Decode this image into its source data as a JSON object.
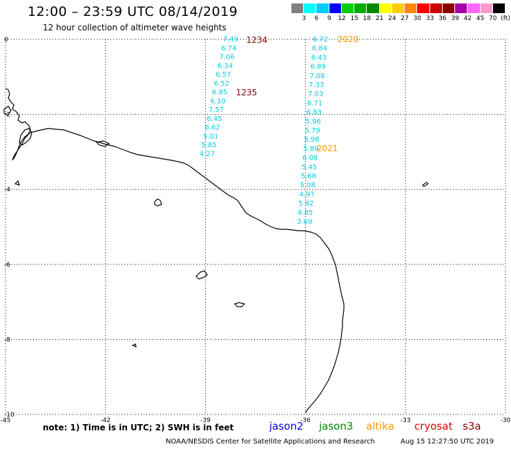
{
  "header": {
    "title": "12:00 – 23:59 UTC 08/14/2019",
    "subtitle": "12 hour collection of altimeter wave heights"
  },
  "color_scale": {
    "labels": [
      "3",
      "6",
      "9",
      "12",
      "15",
      "18",
      "21",
      "24",
      "27",
      "30",
      "33",
      "36",
      "39",
      "42",
      "45",
      "70",
      "(ft)"
    ],
    "colors": [
      "#808080",
      "#00ffff",
      "#00ccff",
      "#0000ff",
      "#00cc00",
      "#00aa00",
      "#008800",
      "#ffff00",
      "#ffcc00",
      "#ff8800",
      "#ff0000",
      "#cc0000",
      "#880000",
      "#aa00aa",
      "#ff66ff",
      "#ff99cc",
      "#000000"
    ]
  },
  "map": {
    "lon_ticks": [
      "-45",
      "-42",
      "-39",
      "-36",
      "-33",
      "-30"
    ],
    "lat_ticks": [
      "0",
      "-2",
      "-4",
      "-6",
      "-8",
      "-10"
    ],
    "land_color": "#000000",
    "grid_color": "#000000"
  },
  "passes": [
    {
      "name": "1234",
      "color": "#800000",
      "values": [
        "7.49",
        "6.74",
        "7.06",
        "6.34",
        "6.57",
        "6.52",
        "6.85",
        "6.10",
        "7.57",
        "6.45",
        "6.62",
        "5.01",
        "5.85",
        "4.27"
      ]
    },
    {
      "name": "1235",
      "color": "#800000"
    },
    {
      "name": "2020",
      "color": "#ff9900",
      "values": [
        "6.72",
        "6.84",
        "6.43",
        "6.89",
        "7.08",
        "7.33",
        "7.03",
        "6.71",
        "6.83",
        "5.96",
        "5.79",
        "5.98",
        "5.89",
        "6.08",
        "5.45",
        "5.68",
        "5.08",
        "4.97",
        "5.42",
        "4.85",
        "3.69"
      ]
    },
    {
      "name": "2021",
      "color": "#ff9900"
    }
  ],
  "footer": {
    "note": "note: 1) Time is in UTC; 2) SWH is in feet",
    "legend": [
      {
        "label": "jason2",
        "color": "#0000cc"
      },
      {
        "label": "jason3",
        "color": "#008800"
      },
      {
        "label": "altika",
        "color": "#ff9900"
      },
      {
        "label": "cryosat",
        "color": "#dd0000"
      },
      {
        "label": "s3a",
        "color": "#880000"
      }
    ],
    "credit": "NOAA/NESDIS Center for Satellite Applications and Research",
    "timestamp": "Aug 15 12:27:50 UTC 2019"
  }
}
